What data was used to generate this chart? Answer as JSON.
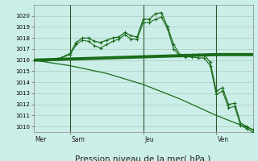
{
  "background_color": "#cceee8",
  "grid_color": "#aaccbb",
  "line_color": "#1a6b1a",
  "dark_green": "#1a5c1a",
  "ylim": [
    1009.5,
    1021.0
  ],
  "yticks": [
    1010,
    1011,
    1012,
    1013,
    1014,
    1015,
    1016,
    1017,
    1018,
    1019,
    1020
  ],
  "xlim": [
    0,
    18
  ],
  "xlabel": "Pression niveau de la mer( hPa )",
  "xlabel_fontsize": 7.5,
  "day_labels": [
    "Mer",
    "Sam",
    "Jeu",
    "Ven"
  ],
  "day_positions": [
    0.1,
    3.1,
    9.1,
    15.1
  ],
  "vline_positions": [
    3,
    9,
    15
  ],
  "series1_x": [
    0,
    1,
    2,
    3,
    3.5,
    4,
    4.5,
    5,
    5.5,
    6,
    6.5,
    7,
    7.5,
    8,
    8.5,
    9,
    9.5,
    10,
    10.5,
    11,
    11.5,
    12,
    12.5,
    13,
    13.5,
    14,
    14.5,
    15,
    15.5,
    16,
    16.5,
    17,
    17.5,
    18
  ],
  "series1_y": [
    1016.0,
    1016.0,
    1016.1,
    1016.6,
    1017.6,
    1018.0,
    1018.0,
    1017.7,
    1017.6,
    1017.8,
    1018.0,
    1018.1,
    1018.5,
    1018.2,
    1018.1,
    1019.7,
    1019.7,
    1020.2,
    1020.3,
    1019.0,
    1017.4,
    1016.5,
    1016.5,
    1016.5,
    1016.5,
    1016.5,
    1015.8,
    1013.2,
    1013.5,
    1012.0,
    1012.1,
    1010.3,
    1010.0,
    1009.7
  ],
  "series2_x": [
    0,
    1,
    2,
    3,
    3.5,
    4,
    4.5,
    5,
    5.5,
    6,
    6.5,
    7,
    7.5,
    8,
    8.5,
    9,
    9.5,
    10,
    10.5,
    11,
    11.5,
    12,
    12.5,
    13,
    13.5,
    14,
    14.5,
    15,
    15.5,
    16,
    16.5,
    17,
    17.5,
    18
  ],
  "series2_y": [
    1016.0,
    1016.0,
    1016.1,
    1016.5,
    1017.4,
    1017.8,
    1017.7,
    1017.3,
    1017.1,
    1017.4,
    1017.7,
    1017.9,
    1018.3,
    1017.9,
    1017.9,
    1019.4,
    1019.4,
    1019.7,
    1019.9,
    1018.8,
    1017.0,
    1016.4,
    1016.3,
    1016.3,
    1016.2,
    1016.2,
    1015.5,
    1012.9,
    1013.2,
    1011.7,
    1011.8,
    1010.1,
    1009.8,
    1009.5
  ],
  "series3_x": [
    0,
    3,
    6,
    9,
    12,
    15,
    18
  ],
  "series3_y": [
    1016.0,
    1016.1,
    1016.2,
    1016.3,
    1016.4,
    1016.5,
    1016.5
  ],
  "series4_x": [
    0,
    3,
    6,
    9,
    12,
    15,
    18
  ],
  "series4_y": [
    1016.0,
    1015.5,
    1014.8,
    1013.8,
    1012.5,
    1011.0,
    1009.7
  ]
}
